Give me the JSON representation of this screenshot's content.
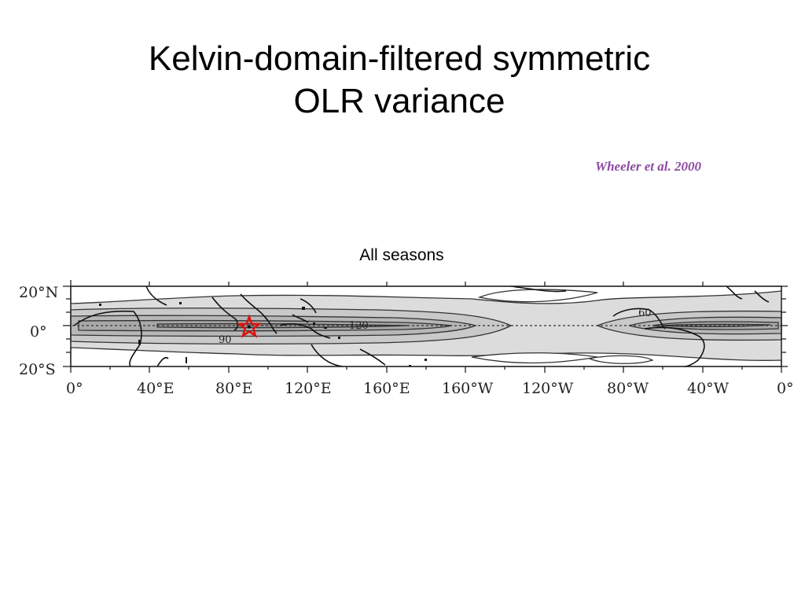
{
  "slide": {
    "title_line1": "Kelvin-domain-filtered symmetric",
    "title_line2": "OLR variance",
    "citation": "Wheeler et al. 2000",
    "subtitle": "All seasons"
  },
  "figure": {
    "lat_labels": [
      "20°N",
      "0°",
      "20°S"
    ],
    "lon_labels": [
      "0°",
      "40°E",
      "80°E",
      "120°E",
      "160°E",
      "160°W",
      "120°W",
      "80°W",
      "40°W",
      "0°"
    ],
    "contour_labels": [
      "90",
      "120",
      "60"
    ],
    "marker": {
      "type": "star",
      "color": "#e01010",
      "longitude": "90°E",
      "latitude": "0°"
    },
    "colors": {
      "shade_light": "#dcdcdc",
      "shade_mid": "#c4c4c4",
      "shade_dark": "#a8a8a8"
    }
  }
}
